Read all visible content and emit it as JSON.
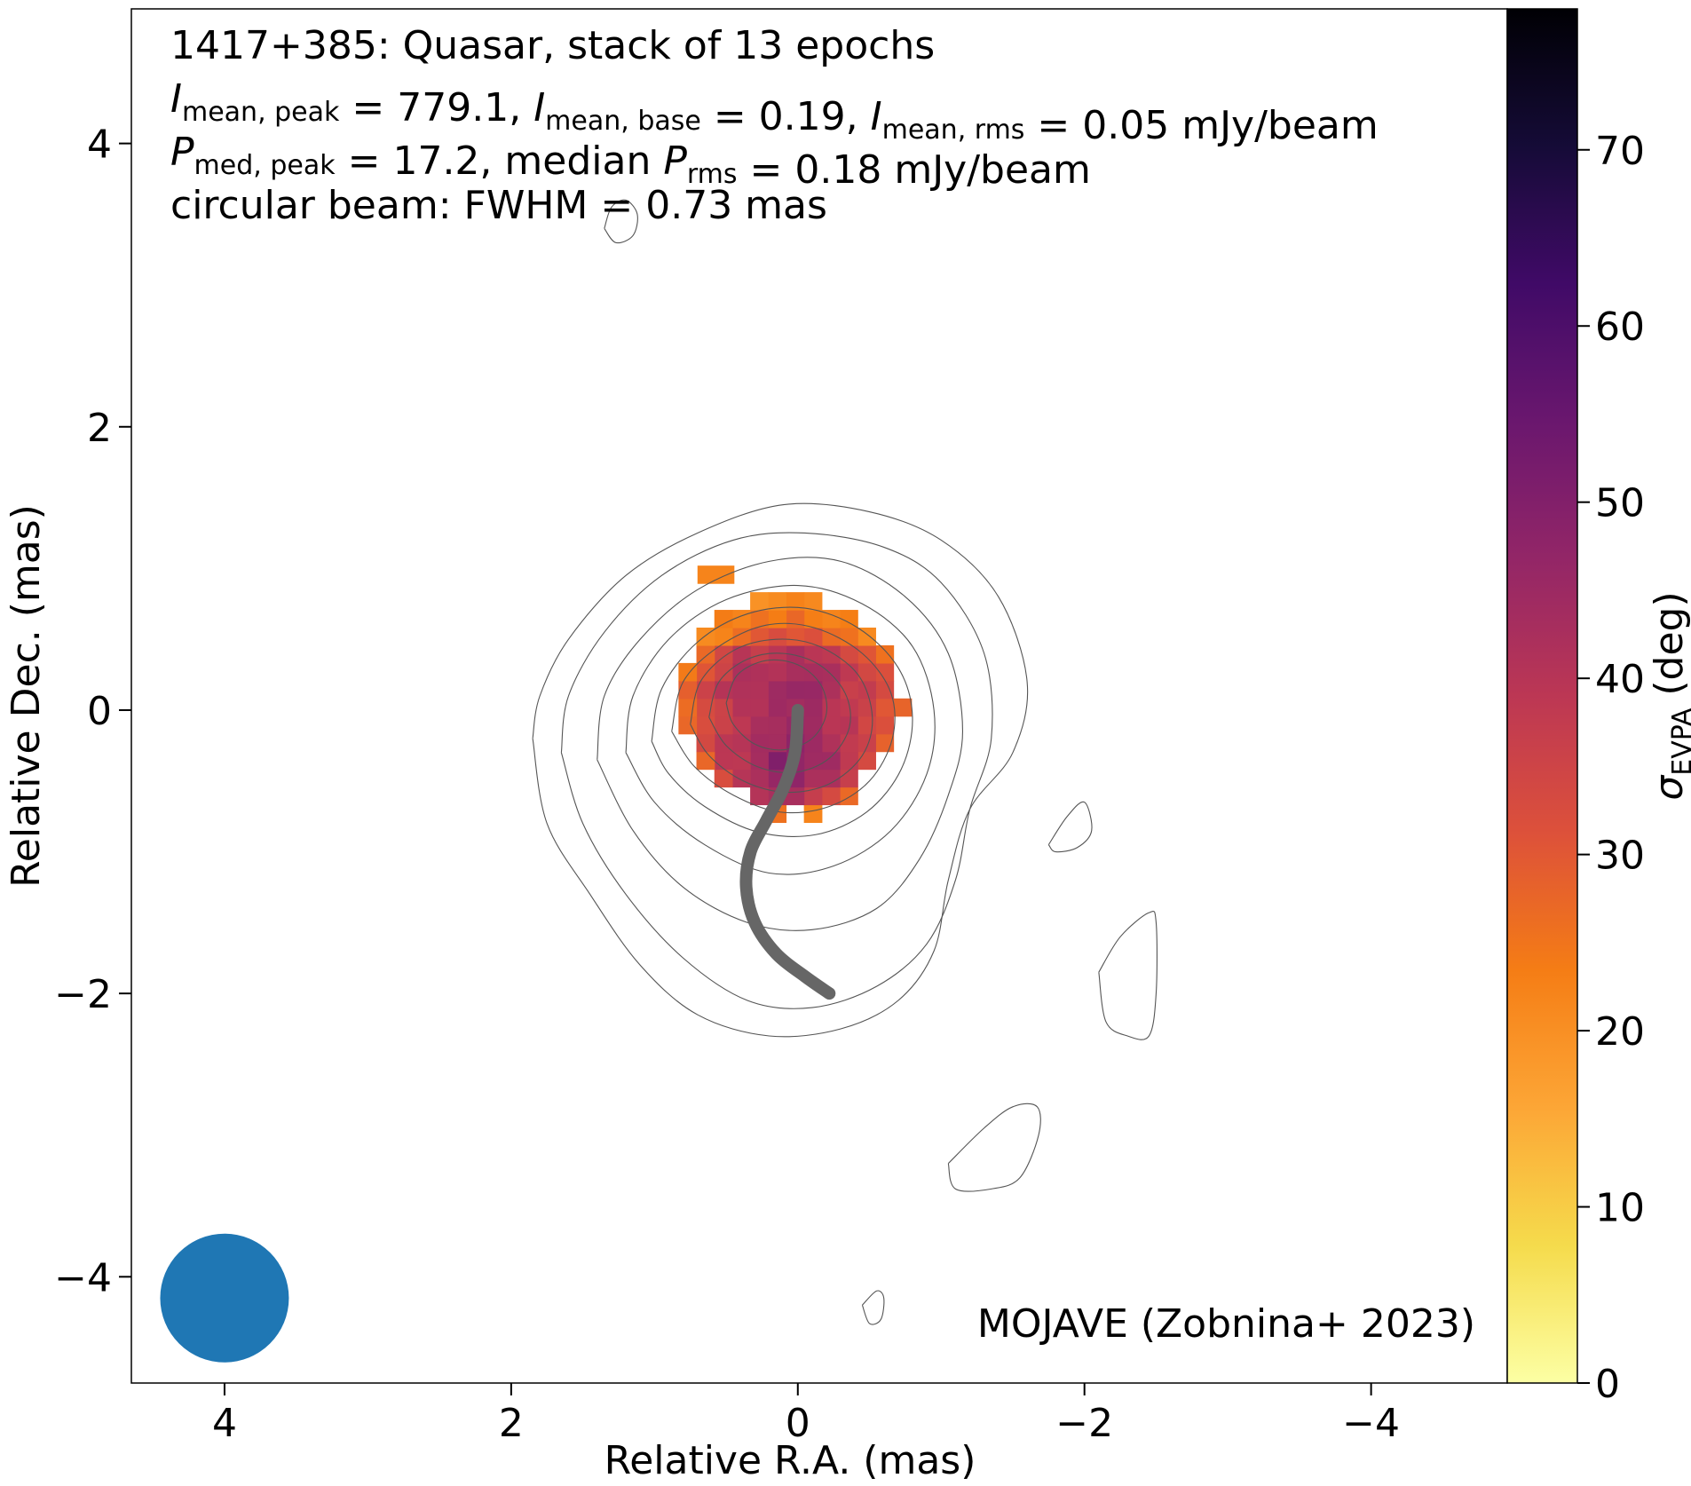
{
  "chart_data": {
    "type": "heatmap",
    "title_lines": [
      [
        {
          "t": "1417+385: Quasar, stack of 13 epochs"
        }
      ],
      [
        {
          "t": "I",
          "i": true
        },
        {
          "t": "mean, peak",
          "sub": true
        },
        {
          "t": " = 779.1, "
        },
        {
          "t": "I",
          "i": true
        },
        {
          "t": "mean, base",
          "sub": true
        },
        {
          "t": " = 0.19, "
        },
        {
          "t": "I",
          "i": true
        },
        {
          "t": "mean, rms",
          "sub": true
        },
        {
          "t": " = 0.05 mJy/beam"
        }
      ],
      [
        {
          "t": "P",
          "i": true
        },
        {
          "t": "med, peak",
          "sub": true
        },
        {
          "t": " = 17.2, median "
        },
        {
          "t": "P",
          "i": true
        },
        {
          "t": "rms",
          "sub": true
        },
        {
          "t": " = 0.18 mJy/beam"
        }
      ],
      [
        {
          "t": "circular beam: FWHM = 0.73 mas"
        }
      ]
    ],
    "credit": "MOJAVE (Zobnina+ 2023)",
    "xlabel": "Relative R.A. (mas)",
    "ylabel": "Relative Dec. (mas)",
    "xlim": [
      4.65,
      -4.95
    ],
    "ylim": [
      -4.75,
      4.95
    ],
    "xticks": [
      {
        "v": 4,
        "label": "4"
      },
      {
        "v": 2,
        "label": "2"
      },
      {
        "v": 0,
        "label": "0"
      },
      {
        "v": -2,
        "label": "−2"
      },
      {
        "v": -4,
        "label": "−4"
      }
    ],
    "yticks": [
      {
        "v": 4,
        "label": "4"
      },
      {
        "v": 2,
        "label": "2"
      },
      {
        "v": 0,
        "label": "0"
      },
      {
        "v": -2,
        "label": "−2"
      },
      {
        "v": -4,
        "label": "−4"
      }
    ],
    "colorbar": {
      "label_main": "σ",
      "label_sub": "EVPA",
      "label_unit": " (deg)",
      "range": [
        0,
        78
      ],
      "colormap": "inferno_r",
      "ticks": [
        {
          "v": 0,
          "label": "0"
        },
        {
          "v": 10,
          "label": "10"
        },
        {
          "v": 20,
          "label": "20"
        },
        {
          "v": 30,
          "label": "30"
        },
        {
          "v": 40,
          "label": "40"
        },
        {
          "v": 50,
          "label": "50"
        },
        {
          "v": 60,
          "label": "60"
        },
        {
          "v": 70,
          "label": "70"
        }
      ]
    },
    "beam": {
      "center": [
        4.0,
        -4.15
      ],
      "fwhm_mas": 0.73,
      "color": "#1f77b4"
    },
    "polarization_map": {
      "center": [
        0.05,
        0.05
      ],
      "radius_mas": 0.78,
      "pixel_mas": 0.125,
      "core_sigma_deg": 44,
      "rim_sigma_deg": 25,
      "north_rim_sigma_deg": 21,
      "south_lobe_sigma_deg": 56
    },
    "ridge_line": {
      "color": "#666666",
      "points": [
        [
          0.0,
          0.0
        ],
        [
          0.02,
          -0.3
        ],
        [
          0.1,
          -0.55
        ],
        [
          0.22,
          -0.78
        ],
        [
          0.33,
          -1.0
        ],
        [
          0.36,
          -1.25
        ],
        [
          0.3,
          -1.5
        ],
        [
          0.15,
          -1.72
        ],
        [
          -0.05,
          -1.88
        ],
        [
          -0.22,
          -2.0
        ]
      ]
    },
    "contours": [
      {
        "level": 1,
        "points": [
          [
            1.85,
            -0.2
          ],
          [
            1.8,
            0.1
          ],
          [
            1.6,
            0.5
          ],
          [
            1.2,
            0.95
          ],
          [
            0.7,
            1.25
          ],
          [
            0.1,
            1.45
          ],
          [
            -0.5,
            1.4
          ],
          [
            -1.0,
            1.2
          ],
          [
            -1.4,
            0.8
          ],
          [
            -1.6,
            0.2
          ],
          [
            -1.5,
            -0.3
          ],
          [
            -1.2,
            -0.7
          ],
          [
            -1.05,
            -1.2
          ],
          [
            -0.95,
            -1.7
          ],
          [
            -0.7,
            -2.05
          ],
          [
            -0.3,
            -2.25
          ],
          [
            0.2,
            -2.3
          ],
          [
            0.7,
            -2.15
          ],
          [
            1.1,
            -1.8
          ],
          [
            1.45,
            -1.3
          ],
          [
            1.75,
            -0.8
          ],
          [
            1.85,
            -0.2
          ]
        ]
      },
      {
        "level": 2,
        "points": [
          [
            1.65,
            -0.3
          ],
          [
            1.6,
            0.1
          ],
          [
            1.35,
            0.55
          ],
          [
            0.95,
            0.95
          ],
          [
            0.45,
            1.2
          ],
          [
            -0.05,
            1.25
          ],
          [
            -0.6,
            1.15
          ],
          [
            -1.0,
            0.9
          ],
          [
            -1.3,
            0.4
          ],
          [
            -1.35,
            -0.2
          ],
          [
            -1.2,
            -0.7
          ],
          [
            -1.1,
            -1.2
          ],
          [
            -0.9,
            -1.65
          ],
          [
            -0.55,
            -1.95
          ],
          [
            -0.1,
            -2.1
          ],
          [
            0.35,
            -2.05
          ],
          [
            0.8,
            -1.75
          ],
          [
            1.2,
            -1.3
          ],
          [
            1.5,
            -0.8
          ],
          [
            1.65,
            -0.3
          ]
        ]
      },
      {
        "level": 3,
        "points": [
          [
            1.4,
            -0.35
          ],
          [
            1.35,
            0.1
          ],
          [
            1.1,
            0.5
          ],
          [
            0.7,
            0.85
          ],
          [
            0.2,
            1.05
          ],
          [
            -0.3,
            1.05
          ],
          [
            -0.75,
            0.8
          ],
          [
            -1.05,
            0.4
          ],
          [
            -1.15,
            -0.15
          ],
          [
            -1.05,
            -0.6
          ],
          [
            -0.85,
            -1.05
          ],
          [
            -0.55,
            -1.4
          ],
          [
            -0.1,
            -1.55
          ],
          [
            0.35,
            -1.5
          ],
          [
            0.8,
            -1.25
          ],
          [
            1.15,
            -0.85
          ],
          [
            1.4,
            -0.35
          ]
        ]
      },
      {
        "level": 4,
        "points": [
          [
            1.2,
            -0.3
          ],
          [
            1.15,
            0.1
          ],
          [
            0.9,
            0.5
          ],
          [
            0.5,
            0.78
          ],
          [
            0.0,
            0.88
          ],
          [
            -0.45,
            0.75
          ],
          [
            -0.8,
            0.45
          ],
          [
            -0.95,
            0.0
          ],
          [
            -0.9,
            -0.45
          ],
          [
            -0.65,
            -0.85
          ],
          [
            -0.25,
            -1.1
          ],
          [
            0.2,
            -1.15
          ],
          [
            0.65,
            -0.95
          ],
          [
            1.0,
            -0.65
          ],
          [
            1.2,
            -0.3
          ]
        ]
      },
      {
        "level": 5,
        "points": [
          [
            1.02,
            -0.22
          ],
          [
            0.95,
            0.15
          ],
          [
            0.7,
            0.48
          ],
          [
            0.35,
            0.68
          ],
          [
            -0.05,
            0.72
          ],
          [
            -0.42,
            0.58
          ],
          [
            -0.7,
            0.3
          ],
          [
            -0.8,
            -0.05
          ],
          [
            -0.72,
            -0.42
          ],
          [
            -0.48,
            -0.72
          ],
          [
            -0.12,
            -0.88
          ],
          [
            0.28,
            -0.86
          ],
          [
            0.65,
            -0.68
          ],
          [
            0.9,
            -0.45
          ],
          [
            1.02,
            -0.22
          ]
        ]
      },
      {
        "level": 6,
        "points": [
          [
            0.88,
            -0.15
          ],
          [
            0.8,
            0.2
          ],
          [
            0.55,
            0.45
          ],
          [
            0.22,
            0.6
          ],
          [
            -0.12,
            0.58
          ],
          [
            -0.45,
            0.4
          ],
          [
            -0.65,
            0.12
          ],
          [
            -0.66,
            -0.2
          ],
          [
            -0.5,
            -0.5
          ],
          [
            -0.22,
            -0.68
          ],
          [
            0.12,
            -0.72
          ],
          [
            0.45,
            -0.6
          ],
          [
            0.72,
            -0.4
          ],
          [
            0.88,
            -0.15
          ]
        ]
      },
      {
        "level": 7,
        "points": [
          [
            0.75,
            -0.1
          ],
          [
            0.68,
            0.2
          ],
          [
            0.45,
            0.42
          ],
          [
            0.15,
            0.5
          ],
          [
            -0.15,
            0.45
          ],
          [
            -0.42,
            0.25
          ],
          [
            -0.52,
            -0.05
          ],
          [
            -0.45,
            -0.32
          ],
          [
            -0.22,
            -0.52
          ],
          [
            0.08,
            -0.58
          ],
          [
            0.38,
            -0.5
          ],
          [
            0.62,
            -0.32
          ],
          [
            0.75,
            -0.1
          ]
        ]
      },
      {
        "level": 8,
        "points": [
          [
            0.62,
            -0.05
          ],
          [
            0.55,
            0.2
          ],
          [
            0.35,
            0.36
          ],
          [
            0.1,
            0.4
          ],
          [
            -0.15,
            0.32
          ],
          [
            -0.33,
            0.12
          ],
          [
            -0.36,
            -0.12
          ],
          [
            -0.22,
            -0.34
          ],
          [
            0.02,
            -0.44
          ],
          [
            0.28,
            -0.4
          ],
          [
            0.5,
            -0.25
          ],
          [
            0.62,
            -0.05
          ]
        ]
      },
      {
        "level": 9,
        "points": [
          [
            0.5,
            0.05
          ],
          [
            0.42,
            0.25
          ],
          [
            0.22,
            0.35
          ],
          [
            0.0,
            0.32
          ],
          [
            -0.16,
            0.18
          ],
          [
            -0.2,
            -0.02
          ],
          [
            -0.1,
            -0.2
          ],
          [
            0.1,
            -0.28
          ],
          [
            0.3,
            -0.24
          ],
          [
            0.45,
            -0.1
          ],
          [
            0.5,
            0.05
          ]
        ]
      },
      {
        "level": 10,
        "points": [
          [
            1.35,
            3.4
          ],
          [
            1.3,
            3.55
          ],
          [
            1.2,
            3.6
          ],
          [
            1.12,
            3.5
          ],
          [
            1.15,
            3.35
          ],
          [
            1.27,
            3.3
          ],
          [
            1.35,
            3.4
          ]
        ]
      },
      {
        "level": 1,
        "points": [
          [
            -1.75,
            -0.95
          ],
          [
            -1.88,
            -0.75
          ],
          [
            -2.0,
            -0.65
          ],
          [
            -2.05,
            -0.85
          ],
          [
            -1.95,
            -0.97
          ],
          [
            -1.8,
            -1.0
          ],
          [
            -1.75,
            -0.95
          ]
        ]
      },
      {
        "level": 1,
        "points": [
          [
            -2.1,
            -1.85
          ],
          [
            -2.25,
            -1.6
          ],
          [
            -2.45,
            -1.43
          ],
          [
            -2.5,
            -1.5
          ],
          [
            -2.5,
            -2.0
          ],
          [
            -2.45,
            -2.3
          ],
          [
            -2.3,
            -2.3
          ],
          [
            -2.15,
            -2.2
          ],
          [
            -2.1,
            -1.85
          ]
        ]
      },
      {
        "level": 1,
        "points": [
          [
            -1.05,
            -3.2
          ],
          [
            -1.3,
            -2.95
          ],
          [
            -1.5,
            -2.8
          ],
          [
            -1.67,
            -2.8
          ],
          [
            -1.68,
            -3.0
          ],
          [
            -1.55,
            -3.3
          ],
          [
            -1.35,
            -3.38
          ],
          [
            -1.1,
            -3.38
          ],
          [
            -1.05,
            -3.2
          ]
        ]
      },
      {
        "level": 1,
        "points": [
          [
            -0.45,
            -4.2
          ],
          [
            -0.55,
            -4.1
          ],
          [
            -0.6,
            -4.15
          ],
          [
            -0.58,
            -4.3
          ],
          [
            -0.5,
            -4.33
          ],
          [
            -0.45,
            -4.2
          ]
        ]
      }
    ]
  }
}
